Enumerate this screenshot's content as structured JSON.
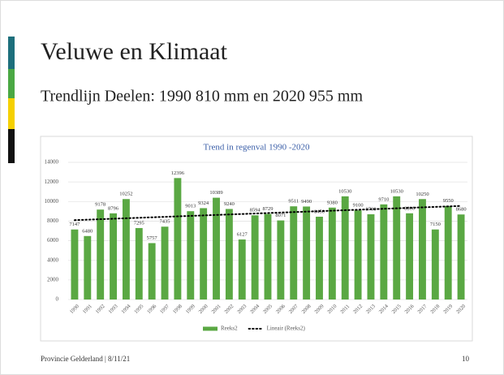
{
  "slide": {
    "title": "Veluwe en Klimaat",
    "subtitle": "Trendlijn Deelen: 1990 810 mm en 2020 955 mm",
    "footer": "Provincie Gelderland | 8/11/21",
    "page": "10"
  },
  "chart_data": {
    "type": "bar",
    "title": "Trend in regenval 1990 -2020",
    "categories": [
      "1990",
      "1991",
      "1992",
      "1993",
      "1994",
      "1995",
      "1996",
      "1997",
      "1998",
      "1999",
      "2000",
      "2001",
      "2002",
      "2003",
      "2004",
      "2005",
      "2006",
      "2007",
      "2008",
      "2009",
      "2010",
      "2011",
      "2012",
      "2013",
      "2014",
      "2015",
      "2016",
      "2017",
      "2018",
      "2019",
      "2020"
    ],
    "series": [
      {
        "name": "Reeks2",
        "color": "#5aa843",
        "values": [
          7147,
          6480,
          9178,
          8796,
          10252,
          7295,
          5757,
          7435,
          12396,
          9013,
          9324,
          10389,
          9240,
          6127,
          8594,
          8729,
          8071,
          9511,
          9490,
          8450,
          9380,
          10530,
          9100,
          8700,
          9710,
          10530,
          8800,
          10250,
          7150,
          9550,
          8680
        ]
      },
      {
        "name": "Lineair (Reeks2)",
        "type": "line",
        "color": "#000000",
        "values": [
          8100,
          8148,
          8197,
          8245,
          8293,
          8342,
          8390,
          8438,
          8487,
          8535,
          8583,
          8632,
          8680,
          8728,
          8777,
          8825,
          8873,
          8922,
          8970,
          9018,
          9067,
          9115,
          9163,
          9212,
          9260,
          9308,
          9357,
          9405,
          9453,
          9502,
          9550
        ]
      }
    ],
    "ylim": [
      0,
      14000
    ],
    "yticks": [
      0,
      2000,
      4000,
      6000,
      8000,
      10000,
      12000,
      14000
    ],
    "grid": true,
    "legend": "bottom"
  }
}
